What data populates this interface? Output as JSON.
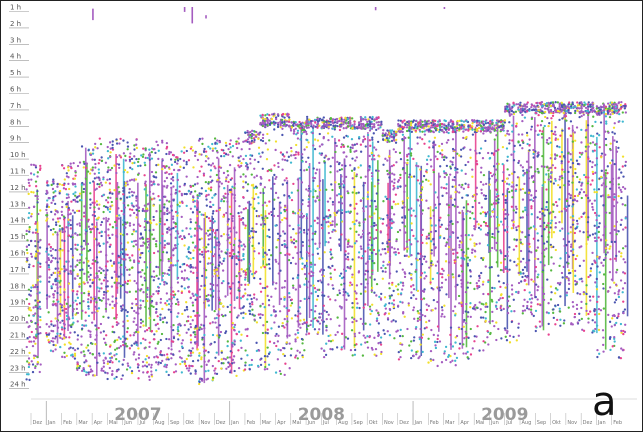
{
  "chart_data": {
    "type": "scatter",
    "title": "",
    "xlabel": "",
    "ylabel": "",
    "panel_label": "a",
    "hour_ticks": [
      "1 h",
      "2 h",
      "3 h",
      "4 h",
      "5 h",
      "6 h",
      "7 h",
      "8 h",
      "9 h",
      "10 h",
      "11 h",
      "12 h",
      "13 h",
      "14 h",
      "15 h",
      "16 h",
      "17 h",
      "18 h",
      "19 h",
      "20 h",
      "21 h",
      "22 h",
      "23 h",
      "24 h"
    ],
    "ylim": [
      1,
      24
    ],
    "month_ticks": [
      "Dez",
      "Jan",
      "Feb",
      "Mar",
      "Apr",
      "Mai",
      "Jun",
      "Jul",
      "Aug",
      "Sep",
      "Okt",
      "Nov",
      "Dez",
      "Jan",
      "Feb",
      "Mar",
      "Apr",
      "Mai",
      "Jun",
      "Jul",
      "Aug",
      "Sep",
      "Okt",
      "Nov",
      "Dez",
      "Jan",
      "Feb",
      "Mar",
      "Apr",
      "Mai",
      "Jun",
      "Jul",
      "Aug",
      "Sep",
      "Okt",
      "Nov",
      "Dez",
      "Jan",
      "Feb"
    ],
    "years": [
      {
        "label": "2007",
        "start_month": 1,
        "end_month": 12
      },
      {
        "label": "2008",
        "start_month": 13,
        "end_month": 24
      },
      {
        "label": "2009",
        "start_month": 25,
        "end_month": 36
      }
    ],
    "colors": {
      "main": "#a45cc0",
      "secondary": "#4a55b0",
      "pink": "#e8438f",
      "cyan": "#3fb8d0",
      "yellow": "#f2e02a",
      "green": "#55b840",
      "axis": "#666666",
      "year_text": "#9a9a9a"
    },
    "series": [
      {
        "month_index": 0.2,
        "start_hour": 10.5,
        "end_hour": 23.8
      },
      {
        "month_index": 1.5,
        "start_hour": 11.5,
        "end_hour": 22.0
      },
      {
        "month_index": 2.5,
        "start_hour": 10.5,
        "end_hour": 22.5
      },
      {
        "month_index": 3.5,
        "start_hour": 9.5,
        "end_hour": 23.5
      },
      {
        "month_index": 4.5,
        "start_hour": 9.0,
        "end_hour": 23.5
      },
      {
        "month_index": 5.5,
        "start_hour": 9.0,
        "end_hour": 23.8
      },
      {
        "month_index": 6.5,
        "start_hour": 9.0,
        "end_hour": 23.5
      },
      {
        "month_index": 7.5,
        "start_hour": 9.5,
        "end_hour": 23.8
      },
      {
        "month_index": 8.5,
        "start_hour": 9.0,
        "end_hour": 23.5
      },
      {
        "month_index": 9.5,
        "start_hour": 9.5,
        "end_hour": 23.5
      },
      {
        "month_index": 10.5,
        "start_hour": 9.5,
        "end_hour": 23.5
      },
      {
        "month_index": 11.5,
        "start_hour": 9.0,
        "end_hour": 24.0
      },
      {
        "month_index": 12.5,
        "start_hour": 9.0,
        "end_hour": 23.5
      },
      {
        "month_index": 13.5,
        "start_hour": 9.0,
        "end_hour": 23.5
      },
      {
        "month_index": 14.5,
        "start_hour": 8.5,
        "end_hour": 23.5
      },
      {
        "month_index": 15.5,
        "start_hour": 7.5,
        "end_hour": 23.5
      },
      {
        "month_index": 16.5,
        "start_hour": 7.5,
        "end_hour": 23.5
      },
      {
        "month_index": 17.5,
        "start_hour": 8.0,
        "end_hour": 22.5
      },
      {
        "month_index": 18.5,
        "start_hour": 7.7,
        "end_hour": 21.0
      },
      {
        "month_index": 19.5,
        "start_hour": 7.7,
        "end_hour": 22.5
      },
      {
        "month_index": 20.5,
        "start_hour": 7.7,
        "end_hour": 22.0
      },
      {
        "month_index": 21.5,
        "start_hour": 7.7,
        "end_hour": 22.5
      },
      {
        "month_index": 22.5,
        "start_hour": 7.7,
        "end_hour": 22.5
      },
      {
        "month_index": 23.5,
        "start_hour": 8.5,
        "end_hour": 21.5
      },
      {
        "month_index": 24.5,
        "start_hour": 7.9,
        "end_hour": 22.5
      },
      {
        "month_index": 25.5,
        "start_hour": 7.9,
        "end_hour": 22.5
      },
      {
        "month_index": 26.5,
        "start_hour": 7.9,
        "end_hour": 23.0
      },
      {
        "month_index": 27.5,
        "start_hour": 7.9,
        "end_hour": 23.0
      },
      {
        "month_index": 28.5,
        "start_hour": 7.9,
        "end_hour": 22.5
      },
      {
        "month_index": 29.5,
        "start_hour": 7.9,
        "end_hour": 22.0
      },
      {
        "month_index": 30.5,
        "start_hour": 7.9,
        "end_hour": 21.5
      },
      {
        "month_index": 31.5,
        "start_hour": 6.8,
        "end_hour": 21.5
      },
      {
        "month_index": 32.5,
        "start_hour": 6.8,
        "end_hour": 20.0
      },
      {
        "month_index": 33.5,
        "start_hour": 6.8,
        "end_hour": 21.0
      },
      {
        "month_index": 34.5,
        "start_hour": 6.8,
        "end_hour": 20.5
      },
      {
        "month_index": 35.5,
        "start_hour": 6.8,
        "end_hour": 20.5
      },
      {
        "month_index": 36.5,
        "start_hour": 6.8,
        "end_hour": 21.0
      },
      {
        "month_index": 37.5,
        "start_hour": 6.8,
        "end_hour": 22.5
      },
      {
        "month_index": 38.5,
        "start_hour": 6.8,
        "end_hour": 22.5
      }
    ]
  }
}
